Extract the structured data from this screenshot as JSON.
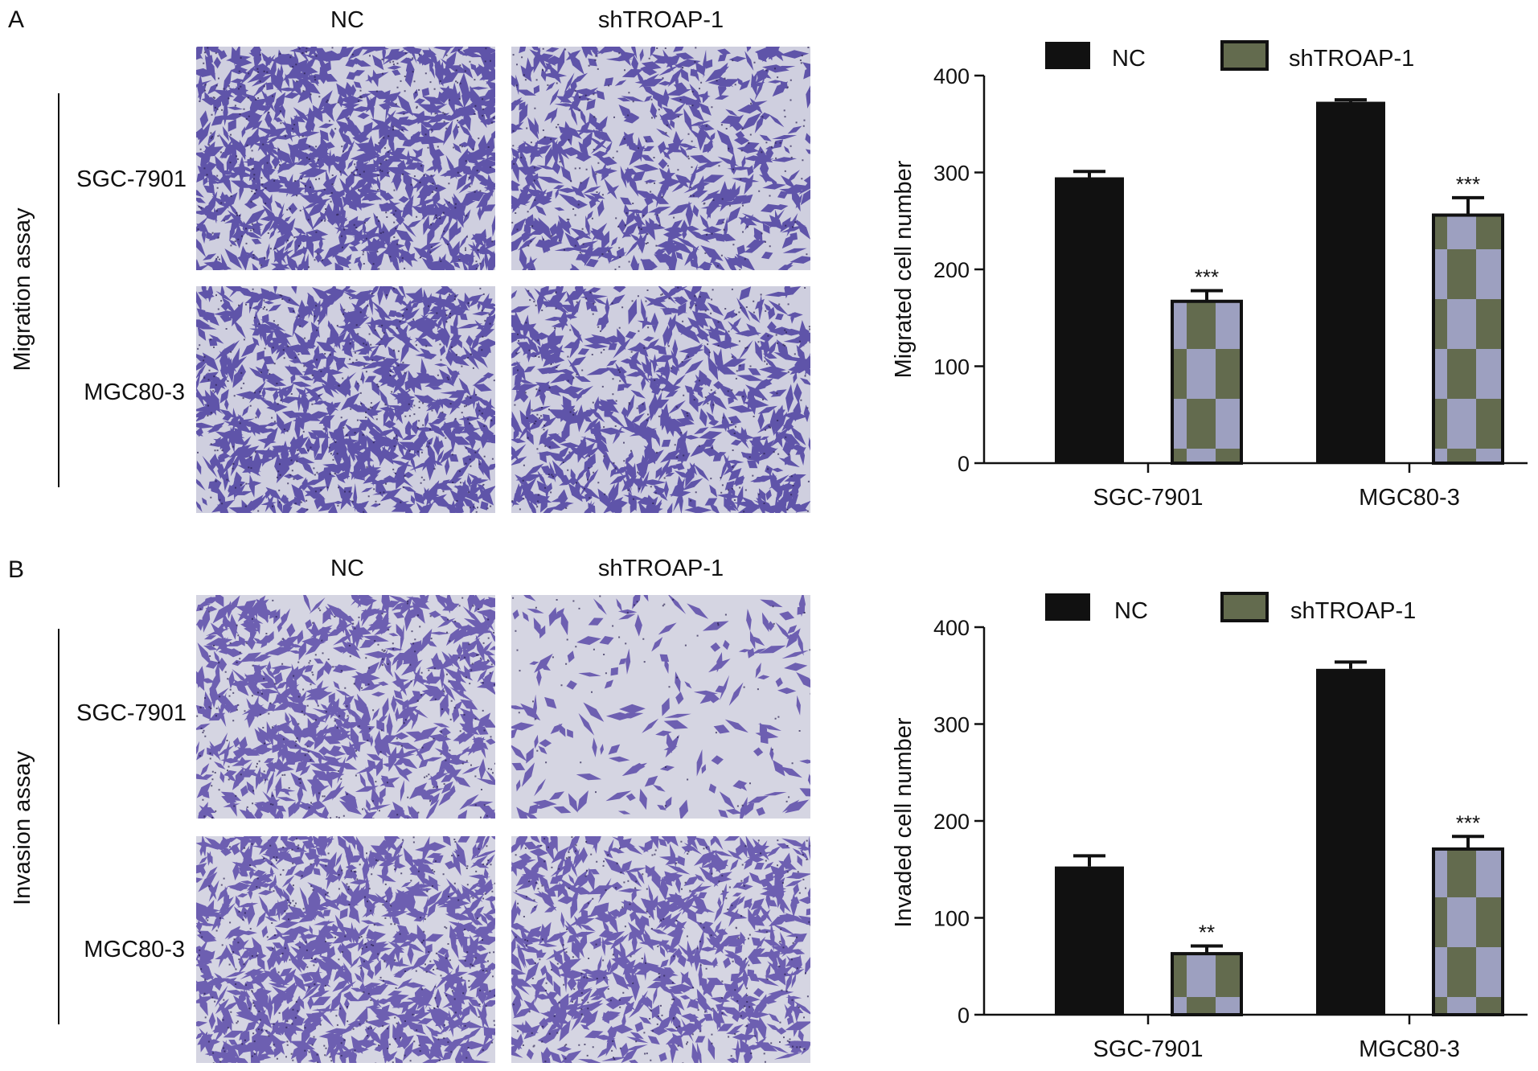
{
  "panels": [
    {
      "letter": "A",
      "side_label": "Migration assay",
      "col_labels": [
        "NC",
        "shTROAP-1"
      ],
      "row_labels": [
        "SGC-7901",
        "MGC80-3"
      ],
      "stain": {
        "bg": "#cfcfdf",
        "cell": "#4b3ea0"
      }
    },
    {
      "letter": "B",
      "side_label": "Invasion assay",
      "col_labels": [
        "NC",
        "shTROAP-1"
      ],
      "row_labels": [
        "SGC-7901",
        "MGC80-3"
      ],
      "stain": {
        "bg": "#d5d5e2",
        "cell": "#5a4aa8"
      }
    }
  ],
  "chart_data": [
    {
      "type": "bar",
      "ylabel": "Migrated cell number",
      "ylim": [
        0,
        400
      ],
      "yticks": [
        0,
        100,
        200,
        300,
        400
      ],
      "categories": [
        "SGC-7901",
        "MGC80-3"
      ],
      "legend_position": "top",
      "series": [
        {
          "name": "NC",
          "values": [
            295,
            373
          ],
          "errors": [
            6,
            2
          ],
          "fill": "solid",
          "color": "#111111"
        },
        {
          "name": "shTROAP-1",
          "values": [
            167,
            256
          ],
          "errors": [
            11,
            18
          ],
          "fill": "checker",
          "colors": [
            "#636b4e",
            "#9da0c0"
          ]
        }
      ],
      "annotations": [
        {
          "series": 1,
          "category": 0,
          "text": "***"
        },
        {
          "series": 1,
          "category": 1,
          "text": "***"
        }
      ]
    },
    {
      "type": "bar",
      "ylabel": "Invaded cell number",
      "ylim": [
        0,
        400
      ],
      "yticks": [
        0,
        100,
        200,
        300,
        400
      ],
      "categories": [
        "SGC-7901",
        "MGC80-3"
      ],
      "legend_position": "top",
      "series": [
        {
          "name": "NC",
          "values": [
            153,
            357
          ],
          "errors": [
            11,
            7
          ],
          "fill": "solid",
          "color": "#111111"
        },
        {
          "name": "shTROAP-1",
          "values": [
            63,
            171
          ],
          "errors": [
            8,
            13
          ],
          "fill": "checker",
          "colors": [
            "#636b4e",
            "#9da0c0"
          ]
        }
      ],
      "annotations": [
        {
          "series": 1,
          "category": 0,
          "text": "**"
        },
        {
          "series": 1,
          "category": 1,
          "text": "***"
        }
      ]
    }
  ]
}
